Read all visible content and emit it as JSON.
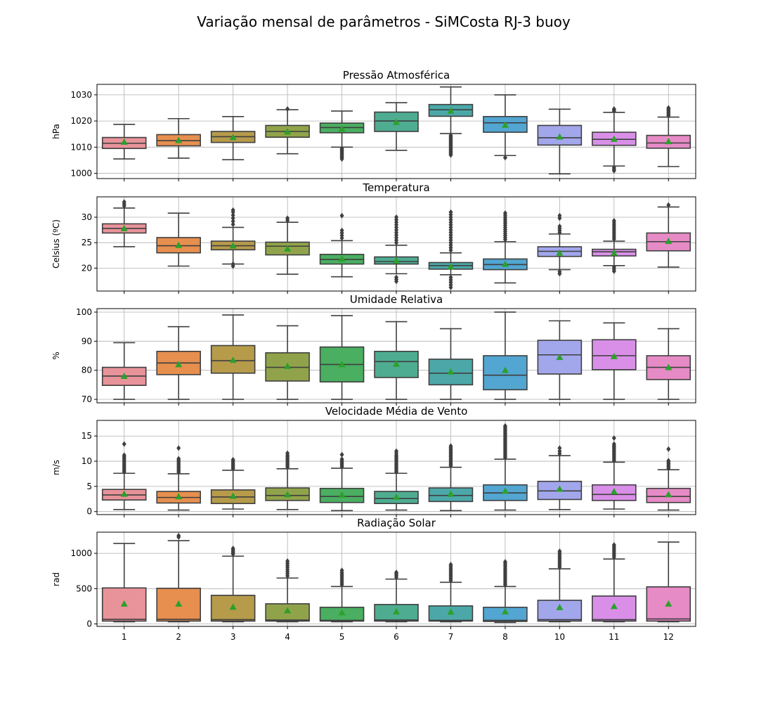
{
  "title": "Variação mensal de parâmetros - SiMCosta RJ-3 buoy",
  "chart_data": [
    {
      "type": "box",
      "title": "Pressão Atmosférica",
      "ylabel": "hPa",
      "ylim": [
        998,
        1034
      ],
      "yticks": [
        1000,
        1010,
        1020,
        1030
      ],
      "grid": true,
      "categories": [
        "1",
        "2",
        "3",
        "4",
        "5",
        "6",
        "7",
        "8",
        "10",
        "11",
        "12"
      ],
      "boxes": [
        {
          "whisker_low": 1005.5,
          "q1": 1009.5,
          "median": 1011.5,
          "q3": 1013.7,
          "whisker_high": 1018.7,
          "mean": 1012.0,
          "outliers": []
        },
        {
          "whisker_low": 1005.8,
          "q1": 1010.5,
          "median": 1012.5,
          "q3": 1014.8,
          "whisker_high": 1020.9,
          "mean": 1012.6,
          "outliers": []
        },
        {
          "whisker_low": 1005.2,
          "q1": 1011.8,
          "median": 1014.0,
          "q3": 1016.0,
          "whisker_high": 1021.7,
          "mean": 1013.8,
          "outliers": []
        },
        {
          "whisker_low": 1007.5,
          "q1": 1013.8,
          "median": 1016.0,
          "q3": 1018.3,
          "whisker_high": 1024.3,
          "mean": 1015.9,
          "outliers": [
            1024.6
          ]
        },
        {
          "whisker_low": 1010.0,
          "q1": 1015.5,
          "median": 1017.5,
          "q3": 1019.2,
          "whisker_high": 1023.8,
          "mean": 1017.0,
          "outliers": [
            1009.5,
            1009.0,
            1008.5,
            1008.0,
            1007.5,
            1007.0,
            1006.5,
            1006.0,
            1005.5
          ]
        },
        {
          "whisker_low": 1008.8,
          "q1": 1016.0,
          "median": 1020.0,
          "q3": 1023.4,
          "whisker_high": 1027.0,
          "mean": 1019.6,
          "outliers": []
        },
        {
          "whisker_low": 1015.2,
          "q1": 1021.8,
          "median": 1024.3,
          "q3": 1026.3,
          "whisker_high": 1033.0,
          "mean": 1023.9,
          "outliers": [
            1014.5,
            1014.0,
            1013.5,
            1013.0,
            1012.5,
            1012.0,
            1011.5,
            1011.0,
            1010.5,
            1010.0,
            1009.5,
            1009.0,
            1008.5,
            1008.0,
            1007.5,
            1007.0
          ]
        },
        {
          "whisker_low": 1006.8,
          "q1": 1015.7,
          "median": 1019.3,
          "q3": 1021.7,
          "whisker_high": 1030.0,
          "mean": 1018.5,
          "outliers": [
            1006.0
          ]
        },
        {
          "whisker_low": 999.8,
          "q1": 1010.8,
          "median": 1013.6,
          "q3": 1018.3,
          "whisker_high": 1024.5,
          "mean": 1014.0,
          "outliers": []
        },
        {
          "whisker_low": 1002.8,
          "q1": 1010.7,
          "median": 1013.0,
          "q3": 1015.7,
          "whisker_high": 1023.3,
          "mean": 1013.1,
          "outliers": [
            1023.8,
            1024.3,
            1024.6,
            1002.2,
            1001.6,
            1001.0
          ]
        },
        {
          "whisker_low": 1002.6,
          "q1": 1009.6,
          "median": 1011.6,
          "q3": 1014.5,
          "whisker_high": 1021.5,
          "mean": 1012.2,
          "outliers": [
            1022.0,
            1022.5,
            1023.0,
            1023.5,
            1024.0,
            1024.5,
            1025.0
          ]
        }
      ]
    },
    {
      "type": "box",
      "title": "Temperatura",
      "ylabel": "Celsius (ºC)",
      "ylim": [
        15.5,
        34
      ],
      "yticks": [
        20,
        25,
        30
      ],
      "grid": true,
      "categories": [
        "1",
        "2",
        "3",
        "4",
        "5",
        "6",
        "7",
        "8",
        "10",
        "11",
        "12"
      ],
      "boxes": [
        {
          "whisker_low": 24.2,
          "q1": 26.9,
          "median": 27.8,
          "q3": 28.7,
          "whisker_high": 31.8,
          "mean": 27.8,
          "outliers": [
            32.2,
            32.6,
            33.0
          ]
        },
        {
          "whisker_low": 20.4,
          "q1": 23.0,
          "median": 24.4,
          "q3": 26.0,
          "whisker_high": 30.8,
          "mean": 24.5,
          "outliers": []
        },
        {
          "whisker_low": 20.8,
          "q1": 23.6,
          "median": 24.4,
          "q3": 25.3,
          "whisker_high": 28.0,
          "mean": 24.4,
          "outliers": [
            28.6,
            29.2,
            29.8,
            30.4,
            31.0,
            31.4,
            20.4,
            20.8
          ]
        },
        {
          "whisker_low": 18.8,
          "q1": 22.6,
          "median": 24.3,
          "q3": 25.1,
          "whisker_high": 29.0,
          "mean": 23.8,
          "outliers": [
            29.4,
            29.8
          ]
        },
        {
          "whisker_low": 18.3,
          "q1": 20.8,
          "median": 21.7,
          "q3": 22.7,
          "whisker_high": 25.4,
          "mean": 21.8,
          "outliers": [
            25.9,
            26.4,
            26.9,
            27.4,
            30.3
          ]
        },
        {
          "whisker_low": 18.9,
          "q1": 20.8,
          "median": 21.3,
          "q3": 22.2,
          "whisker_high": 24.5,
          "mean": 21.5,
          "outliers": [
            25.0,
            25.5,
            26.0,
            26.5,
            27.0,
            27.5,
            28.0,
            28.5,
            29.0,
            29.5,
            30.0,
            18.2,
            17.8,
            17.4
          ]
        },
        {
          "whisker_low": 18.7,
          "q1": 19.8,
          "median": 20.5,
          "q3": 21.1,
          "whisker_high": 23.0,
          "mean": 20.3,
          "outliers": [
            23.5,
            24.0,
            24.5,
            25.0,
            25.5,
            26.0,
            26.5,
            27.0,
            27.5,
            28.0,
            28.5,
            29.0,
            29.5,
            30.0,
            30.5,
            31.0,
            18.2,
            17.7,
            17.2,
            16.7,
            16.2
          ]
        },
        {
          "whisker_low": 17.1,
          "q1": 19.7,
          "median": 20.7,
          "q3": 21.8,
          "whisker_high": 25.2,
          "mean": 20.8,
          "outliers": [
            25.6,
            26.0,
            26.4,
            26.8,
            27.2,
            27.6,
            28.0,
            28.4,
            28.8,
            29.2,
            29.6,
            30.0,
            30.4,
            30.8
          ]
        },
        {
          "whisker_low": 19.7,
          "q1": 22.3,
          "median": 23.3,
          "q3": 24.2,
          "whisker_high": 26.7,
          "mean": 23.0,
          "outliers": [
            27.0,
            27.4,
            27.8,
            28.2,
            29.8,
            30.3,
            19.3,
            18.9
          ]
        },
        {
          "whisker_low": 20.5,
          "q1": 22.4,
          "median": 23.2,
          "q3": 23.7,
          "whisker_high": 25.3,
          "mean": 23.0,
          "outliers": [
            25.7,
            26.1,
            26.5,
            26.9,
            27.3,
            27.7,
            28.1,
            28.5,
            28.9,
            29.3,
            20.2,
            19.8,
            19.4
          ]
        },
        {
          "whisker_low": 20.2,
          "q1": 23.4,
          "median": 25.2,
          "q3": 26.9,
          "whisker_high": 32.0,
          "mean": 25.3,
          "outliers": [
            32.4
          ]
        }
      ]
    },
    {
      "type": "box",
      "title": "Umidade Relativa",
      "ylabel": "%",
      "ylim": [
        68.8,
        101.2
      ],
      "yticks": [
        70,
        80,
        90,
        100
      ],
      "grid": true,
      "categories": [
        "1",
        "2",
        "3",
        "4",
        "5",
        "6",
        "7",
        "8",
        "10",
        "11",
        "12"
      ],
      "boxes": [
        {
          "whisker_low": 70.0,
          "q1": 74.8,
          "median": 78.0,
          "q3": 81.0,
          "whisker_high": 89.5,
          "mean": 78.0,
          "outliers": []
        },
        {
          "whisker_low": 70.0,
          "q1": 78.5,
          "median": 82.5,
          "q3": 86.5,
          "whisker_high": 95.0,
          "mean": 82.0,
          "outliers": []
        },
        {
          "whisker_low": 70.0,
          "q1": 79.0,
          "median": 83.3,
          "q3": 88.5,
          "whisker_high": 99.0,
          "mean": 83.5,
          "outliers": []
        },
        {
          "whisker_low": 70.0,
          "q1": 76.3,
          "median": 81.0,
          "q3": 86.0,
          "whisker_high": 95.3,
          "mean": 81.4,
          "outliers": []
        },
        {
          "whisker_low": 70.0,
          "q1": 76.0,
          "median": 82.0,
          "q3": 88.0,
          "whisker_high": 98.8,
          "mean": 82.0,
          "outliers": []
        },
        {
          "whisker_low": 70.0,
          "q1": 77.5,
          "median": 83.0,
          "q3": 86.5,
          "whisker_high": 96.7,
          "mean": 82.2,
          "outliers": []
        },
        {
          "whisker_low": 70.0,
          "q1": 75.0,
          "median": 79.0,
          "q3": 83.8,
          "whisker_high": 94.3,
          "mean": 79.5,
          "outliers": []
        },
        {
          "whisker_low": 70.0,
          "q1": 73.3,
          "median": 78.3,
          "q3": 85.0,
          "whisker_high": 100.0,
          "mean": 80.0,
          "outliers": []
        },
        {
          "whisker_low": 70.0,
          "q1": 78.7,
          "median": 85.3,
          "q3": 90.3,
          "whisker_high": 97.0,
          "mean": 84.5,
          "outliers": []
        },
        {
          "whisker_low": 70.0,
          "q1": 80.2,
          "median": 85.0,
          "q3": 90.5,
          "whisker_high": 96.3,
          "mean": 84.8,
          "outliers": []
        },
        {
          "whisker_low": 70.0,
          "q1": 76.8,
          "median": 81.0,
          "q3": 85.0,
          "whisker_high": 94.3,
          "mean": 81.0,
          "outliers": []
        }
      ]
    },
    {
      "type": "box",
      "title": "Velocidade Média de Vento",
      "ylabel": "m/s",
      "ylim": [
        -0.6,
        18.1
      ],
      "yticks": [
        0,
        5,
        10,
        15
      ],
      "grid": true,
      "categories": [
        "1",
        "2",
        "3",
        "4",
        "5",
        "6",
        "7",
        "8",
        "10",
        "11",
        "12"
      ],
      "boxes": [
        {
          "whisker_low": 0.4,
          "q1": 2.3,
          "median": 3.3,
          "q3": 4.4,
          "whisker_high": 7.6,
          "mean": 3.5,
          "outliers": [
            7.9,
            8.2,
            8.5,
            8.8,
            9.1,
            9.4,
            9.7,
            10.0,
            10.3,
            10.6,
            10.9,
            11.2,
            13.4
          ]
        },
        {
          "whisker_low": 0.3,
          "q1": 1.7,
          "median": 2.8,
          "q3": 4.0,
          "whisker_high": 7.5,
          "mean": 3.0,
          "outliers": [
            7.8,
            8.1,
            8.4,
            8.7,
            9.0,
            9.3,
            9.6,
            9.9,
            10.2,
            10.5,
            12.6
          ]
        },
        {
          "whisker_low": 0.5,
          "q1": 1.6,
          "median": 2.9,
          "q3": 4.3,
          "whisker_high": 8.2,
          "mean": 3.1,
          "outliers": [
            8.5,
            8.8,
            9.1,
            9.4,
            9.7,
            10.0,
            10.3
          ]
        },
        {
          "whisker_low": 0.4,
          "q1": 2.2,
          "median": 3.2,
          "q3": 4.7,
          "whisker_high": 8.5,
          "mean": 3.4,
          "outliers": [
            8.8,
            9.1,
            9.4,
            9.7,
            10.0,
            10.3,
            10.6,
            10.9,
            11.2,
            11.6
          ]
        },
        {
          "whisker_low": 0.2,
          "q1": 1.8,
          "median": 3.0,
          "q3": 4.6,
          "whisker_high": 8.6,
          "mean": 3.3,
          "outliers": [
            8.9,
            9.2,
            9.5,
            9.8,
            10.1,
            10.4,
            11.3
          ]
        },
        {
          "whisker_low": 0.3,
          "q1": 1.6,
          "median": 2.6,
          "q3": 4.0,
          "whisker_high": 7.6,
          "mean": 2.9,
          "outliers": [
            7.9,
            8.2,
            8.5,
            8.8,
            9.1,
            9.4,
            9.7,
            10.0,
            10.3,
            10.6,
            10.9,
            11.2,
            11.6,
            12.0
          ]
        },
        {
          "whisker_low": 0.2,
          "q1": 2.0,
          "median": 3.2,
          "q3": 4.7,
          "whisker_high": 8.8,
          "mean": 3.5,
          "outliers": [
            9.1,
            9.4,
            9.7,
            10.0,
            10.3,
            10.6,
            10.9,
            11.2,
            11.5,
            11.8,
            12.1,
            12.4,
            12.7,
            13.0
          ]
        },
        {
          "whisker_low": 0.3,
          "q1": 2.2,
          "median": 3.7,
          "q3": 5.3,
          "whisker_high": 10.4,
          "mean": 4.1,
          "outliers": [
            10.7,
            11.0,
            11.3,
            11.6,
            11.9,
            12.2,
            12.5,
            12.8,
            13.1,
            13.4,
            13.7,
            14.0,
            14.3,
            14.6,
            14.9,
            15.2,
            15.5,
            15.8,
            16.1,
            16.4,
            16.7,
            17.0
          ]
        },
        {
          "whisker_low": 0.4,
          "q1": 2.4,
          "median": 4.1,
          "q3": 6.0,
          "whisker_high": 11.1,
          "mean": 4.5,
          "outliers": [
            11.5,
            12.0,
            12.6
          ]
        },
        {
          "whisker_low": 0.5,
          "q1": 2.2,
          "median": 3.4,
          "q3": 5.3,
          "whisker_high": 9.8,
          "mean": 4.0,
          "outliers": [
            10.1,
            10.4,
            10.7,
            11.0,
            11.3,
            11.6,
            11.9,
            12.2,
            12.5,
            12.8,
            13.1,
            13.4,
            14.6
          ]
        },
        {
          "whisker_low": 0.3,
          "q1": 1.8,
          "median": 3.0,
          "q3": 4.6,
          "whisker_high": 8.3,
          "mean": 3.4,
          "outliers": [
            8.6,
            8.9,
            9.2,
            9.5,
            9.8,
            10.1,
            12.4
          ]
        }
      ]
    },
    {
      "type": "box",
      "title": "Radiação Solar",
      "ylabel": "rad",
      "ylim": [
        -35,
        1300
      ],
      "yticks": [
        0,
        500,
        1000
      ],
      "grid": true,
      "categories": [
        "1",
        "2",
        "3",
        "4",
        "5",
        "6",
        "7",
        "8",
        "10",
        "11",
        "12"
      ],
      "boxes": [
        {
          "whisker_low": 30,
          "q1": 40,
          "median": 65,
          "q3": 510,
          "whisker_high": 1140,
          "mean": 285,
          "outliers": []
        },
        {
          "whisker_low": 30,
          "q1": 40,
          "median": 65,
          "q3": 505,
          "whisker_high": 1180,
          "mean": 285,
          "outliers": [
            1250,
            1230
          ]
        },
        {
          "whisker_low": 30,
          "q1": 40,
          "median": 60,
          "q3": 405,
          "whisker_high": 960,
          "mean": 240,
          "outliers": [
            990,
            1010,
            1030,
            1050,
            1070
          ]
        },
        {
          "whisker_low": 30,
          "q1": 40,
          "median": 55,
          "q3": 285,
          "whisker_high": 650,
          "mean": 190,
          "outliers": [
            680,
            710,
            740,
            770,
            800,
            830,
            860,
            890
          ]
        },
        {
          "whisker_low": 30,
          "q1": 40,
          "median": 50,
          "q3": 235,
          "whisker_high": 530,
          "mean": 160,
          "outliers": [
            555,
            580,
            605,
            630,
            655,
            680,
            705,
            730,
            760
          ]
        },
        {
          "whisker_low": 30,
          "q1": 40,
          "median": 55,
          "q3": 275,
          "whisker_high": 635,
          "mean": 175,
          "outliers": [
            660,
            685,
            710,
            730
          ]
        },
        {
          "whisker_low": 30,
          "q1": 40,
          "median": 50,
          "q3": 255,
          "whisker_high": 590,
          "mean": 170,
          "outliers": [
            615,
            640,
            665,
            690,
            715,
            740,
            765,
            790,
            815,
            840
          ]
        },
        {
          "whisker_low": 20,
          "q1": 35,
          "median": 50,
          "q3": 235,
          "whisker_high": 530,
          "mean": 175,
          "outliers": [
            555,
            580,
            605,
            630,
            655,
            680,
            705,
            730,
            755,
            780,
            805,
            830,
            855,
            880
          ]
        },
        {
          "whisker_low": 30,
          "q1": 40,
          "median": 60,
          "q3": 335,
          "whisker_high": 780,
          "mean": 235,
          "outliers": [
            805,
            830,
            855,
            880,
            905,
            930,
            955,
            980,
            1005,
            1030
          ]
        },
        {
          "whisker_low": 30,
          "q1": 40,
          "median": 60,
          "q3": 395,
          "whisker_high": 920,
          "mean": 250,
          "outliers": [
            945,
            970,
            995,
            1020,
            1045,
            1070,
            1095,
            1120
          ]
        },
        {
          "whisker_low": 30,
          "q1": 40,
          "median": 70,
          "q3": 525,
          "whisker_high": 1160,
          "mean": 285,
          "outliers": []
        }
      ]
    }
  ],
  "colors": {
    "boxes": [
      "#e8939a",
      "#e68f4f",
      "#b69b4b",
      "#91a34a",
      "#4aaf61",
      "#4eac91",
      "#4ca8a8",
      "#52a6d1",
      "#a2a7ec",
      "#d98fe8",
      "#e68bc6"
    ],
    "mean_marker": "#2ca02c",
    "line": "#3f3f3f",
    "grid": "#b0b0b0"
  }
}
